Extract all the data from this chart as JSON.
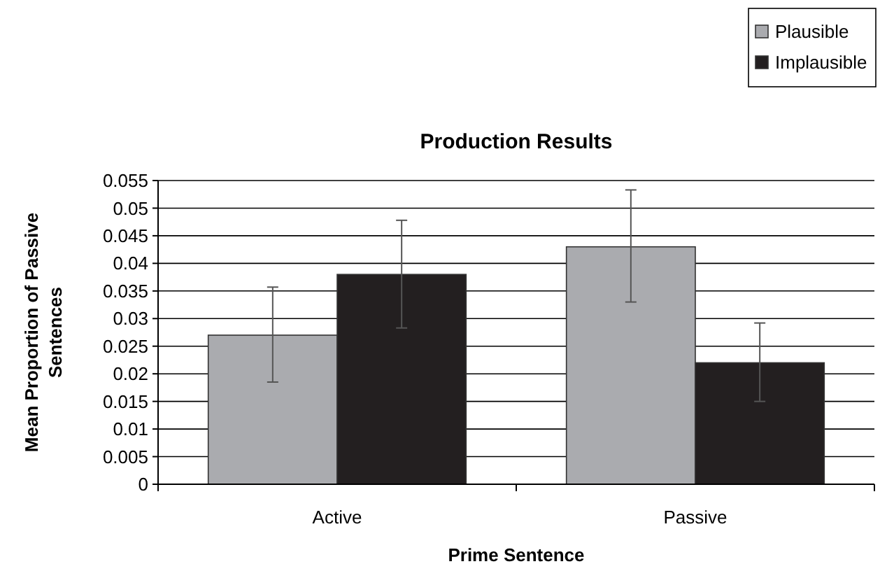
{
  "chart_data": {
    "type": "bar",
    "title": "Production Results",
    "xlabel": "Prime Sentence",
    "ylabel": "Mean Proportion of Passive Sentences",
    "categories": [
      "Active",
      "Passive"
    ],
    "series": [
      {
        "name": "Plausible",
        "color": "#aaabaf",
        "values": [
          0.027,
          0.043
        ],
        "errors": [
          [
            0.0185,
            0.0357
          ],
          [
            0.033,
            0.0533
          ]
        ]
      },
      {
        "name": "Implausible",
        "color": "#231f20",
        "values": [
          0.038,
          0.022
        ],
        "errors": [
          [
            0.0283,
            0.0478
          ],
          [
            0.015,
            0.0292
          ]
        ]
      }
    ],
    "ylim": [
      0,
      0.055
    ],
    "yticks": [
      0,
      0.005,
      0.01,
      0.015,
      0.02,
      0.025,
      0.03,
      0.035,
      0.04,
      0.045,
      0.05,
      0.055
    ],
    "grid": "y",
    "legend": "top right"
  }
}
